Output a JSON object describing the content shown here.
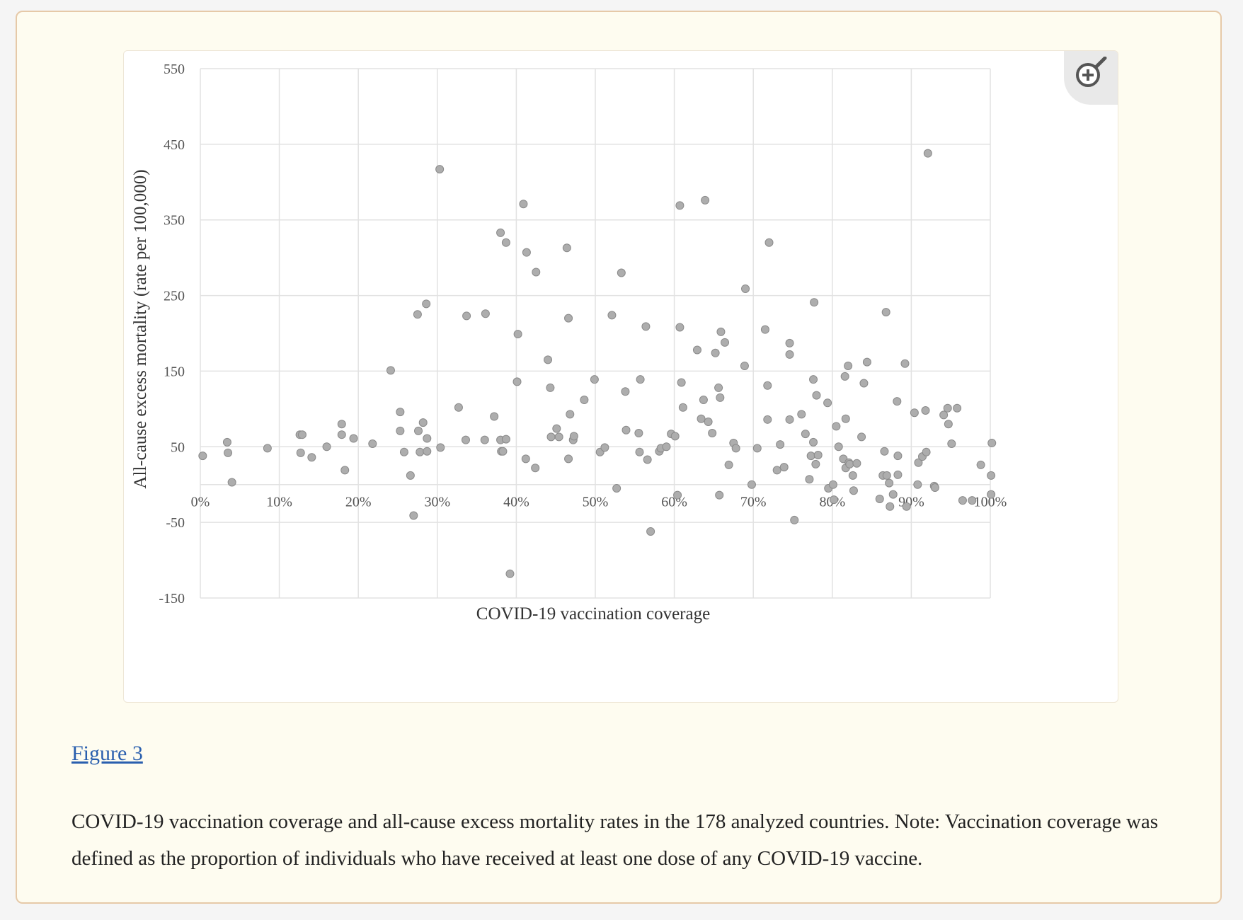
{
  "figure_link": "Figure 3",
  "caption": "COVID-19 vaccination coverage and all-cause excess mortality rates in the 178 analyzed countries. Note: Vaccination coverage was defined as the proportion of individuals who have received at least one dose of any COVID-19 vaccine.",
  "zoom_icon": "zoom-in-icon",
  "colors": {
    "point_fill": "#adadad",
    "point_stroke": "#8a8a8a",
    "grid": "#e2e2e2",
    "link": "#2a5fae",
    "card_border": "#e6c9a8",
    "card_bg": "#fefcf0"
  },
  "chart_data": {
    "type": "scatter",
    "title": "",
    "xlabel": "COVID-19 vaccination coverage",
    "ylabel": "All-cause excess mortality (rate per 100,000)",
    "xlim": [
      0,
      100
    ],
    "ylim": [
      -150,
      550
    ],
    "x_ticks": [
      "0%",
      "10%",
      "20%",
      "30%",
      "40%",
      "50%",
      "60%",
      "70%",
      "80%",
      "90%",
      "100%"
    ],
    "y_ticks": [
      "550",
      "450",
      "350",
      "250",
      "150",
      "50",
      "-50",
      "-150"
    ],
    "grid": true,
    "legend": "none",
    "points": [
      [
        0.3,
        38
      ],
      [
        3.4,
        56
      ],
      [
        3.5,
        42
      ],
      [
        4.0,
        3
      ],
      [
        8.5,
        48
      ],
      [
        12.6,
        66
      ],
      [
        12.9,
        66
      ],
      [
        12.7,
        42
      ],
      [
        14.1,
        36
      ],
      [
        16.0,
        50
      ],
      [
        17.9,
        80
      ],
      [
        17.9,
        66
      ],
      [
        18.3,
        19
      ],
      [
        19.4,
        61
      ],
      [
        21.8,
        54
      ],
      [
        24.1,
        151
      ],
      [
        25.3,
        96
      ],
      [
        25.3,
        71
      ],
      [
        25.8,
        43
      ],
      [
        26.6,
        12
      ],
      [
        27.0,
        -41
      ],
      [
        27.5,
        225
      ],
      [
        27.6,
        71
      ],
      [
        27.8,
        43
      ],
      [
        28.2,
        82
      ],
      [
        28.6,
        239
      ],
      [
        28.7,
        61
      ],
      [
        28.7,
        44
      ],
      [
        30.3,
        417
      ],
      [
        30.4,
        49
      ],
      [
        32.7,
        102
      ],
      [
        33.6,
        59
      ],
      [
        33.7,
        223
      ],
      [
        36.0,
        59
      ],
      [
        36.1,
        226
      ],
      [
        37.2,
        90
      ],
      [
        38.0,
        59
      ],
      [
        38.0,
        333
      ],
      [
        38.1,
        44
      ],
      [
        38.3,
        44
      ],
      [
        38.7,
        60
      ],
      [
        38.7,
        320
      ],
      [
        39.2,
        -118
      ],
      [
        40.2,
        199
      ],
      [
        40.1,
        136
      ],
      [
        40.9,
        371
      ],
      [
        41.2,
        34
      ],
      [
        41.3,
        307
      ],
      [
        42.4,
        22
      ],
      [
        42.5,
        281
      ],
      [
        44.0,
        165
      ],
      [
        44.3,
        128
      ],
      [
        44.4,
        63
      ],
      [
        45.1,
        74
      ],
      [
        45.4,
        63
      ],
      [
        46.4,
        313
      ],
      [
        46.6,
        220
      ],
      [
        46.6,
        34
      ],
      [
        46.8,
        93
      ],
      [
        47.2,
        59
      ],
      [
        47.3,
        64
      ],
      [
        48.6,
        112
      ],
      [
        49.9,
        139
      ],
      [
        50.6,
        43
      ],
      [
        51.2,
        49
      ],
      [
        52.1,
        224
      ],
      [
        52.7,
        -5
      ],
      [
        53.3,
        280
      ],
      [
        53.8,
        123
      ],
      [
        53.9,
        72
      ],
      [
        55.5,
        68
      ],
      [
        55.6,
        43
      ],
      [
        55.7,
        139
      ],
      [
        56.4,
        209
      ],
      [
        56.6,
        33
      ],
      [
        57.0,
        -62
      ],
      [
        58.1,
        44
      ],
      [
        58.3,
        48
      ],
      [
        59.0,
        50
      ],
      [
        59.6,
        67
      ],
      [
        60.1,
        64
      ],
      [
        60.4,
        -14
      ],
      [
        60.7,
        369
      ],
      [
        60.7,
        208
      ],
      [
        60.9,
        135
      ],
      [
        61.1,
        102
      ],
      [
        62.9,
        178
      ],
      [
        63.4,
        87
      ],
      [
        63.7,
        112
      ],
      [
        63.9,
        376
      ],
      [
        64.3,
        83
      ],
      [
        64.8,
        68
      ],
      [
        65.2,
        174
      ],
      [
        65.6,
        128
      ],
      [
        65.8,
        115
      ],
      [
        65.9,
        202
      ],
      [
        65.7,
        -14
      ],
      [
        66.4,
        188
      ],
      [
        66.9,
        26
      ],
      [
        67.5,
        55
      ],
      [
        67.8,
        48
      ],
      [
        68.9,
        157
      ],
      [
        69.0,
        259
      ],
      [
        69.8,
        0
      ],
      [
        70.5,
        48
      ],
      [
        71.5,
        205
      ],
      [
        71.8,
        131
      ],
      [
        71.8,
        86
      ],
      [
        72.0,
        320
      ],
      [
        73.0,
        19
      ],
      [
        73.4,
        53
      ],
      [
        73.9,
        23
      ],
      [
        74.6,
        187
      ],
      [
        74.6,
        172
      ],
      [
        74.6,
        86
      ],
      [
        75.2,
        -47
      ],
      [
        76.1,
        93
      ],
      [
        76.6,
        67
      ],
      [
        77.1,
        7
      ],
      [
        77.3,
        38
      ],
      [
        77.6,
        56
      ],
      [
        77.6,
        139
      ],
      [
        77.7,
        241
      ],
      [
        77.9,
        27
      ],
      [
        78.0,
        118
      ],
      [
        78.2,
        39
      ],
      [
        79.4,
        108
      ],
      [
        79.5,
        -5
      ],
      [
        80.1,
        0
      ],
      [
        80.2,
        -20
      ],
      [
        80.5,
        77
      ],
      [
        80.8,
        50
      ],
      [
        81.4,
        34
      ],
      [
        81.6,
        143
      ],
      [
        81.7,
        87
      ],
      [
        81.7,
        22
      ],
      [
        82.0,
        157
      ],
      [
        82.1,
        29
      ],
      [
        82.2,
        27
      ],
      [
        82.6,
        12
      ],
      [
        82.7,
        -8
      ],
      [
        83.1,
        28
      ],
      [
        83.7,
        63
      ],
      [
        84.0,
        134
      ],
      [
        84.4,
        162
      ],
      [
        86.0,
        -19
      ],
      [
        86.4,
        12
      ],
      [
        86.6,
        44
      ],
      [
        86.8,
        228
      ],
      [
        86.9,
        12
      ],
      [
        87.2,
        2
      ],
      [
        87.3,
        -29
      ],
      [
        87.7,
        -13
      ],
      [
        88.2,
        110
      ],
      [
        88.3,
        38
      ],
      [
        88.3,
        13
      ],
      [
        89.2,
        160
      ],
      [
        89.4,
        -29
      ],
      [
        90.4,
        95
      ],
      [
        90.8,
        0
      ],
      [
        90.9,
        29
      ],
      [
        91.4,
        37
      ],
      [
        91.8,
        98
      ],
      [
        91.9,
        43
      ],
      [
        92.1,
        438
      ],
      [
        92.9,
        -2
      ],
      [
        93.0,
        -4
      ],
      [
        94.1,
        92
      ],
      [
        94.6,
        101
      ],
      [
        94.7,
        80
      ],
      [
        95.1,
        54
      ],
      [
        95.8,
        101
      ],
      [
        97.7,
        -21
      ],
      [
        98.8,
        26
      ],
      [
        100.1,
        12
      ],
      [
        100.2,
        55
      ],
      [
        100.1,
        -13
      ],
      [
        96.5,
        -21
      ]
    ]
  }
}
